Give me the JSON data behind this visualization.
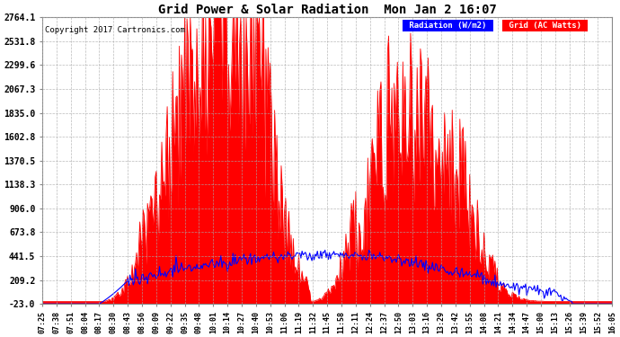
{
  "title": "Grid Power & Solar Radiation  Mon Jan 2 16:07",
  "copyright": "Copyright 2017 Cartronics.com",
  "background_color": "#ffffff",
  "plot_bg_color": "#ffffff",
  "grid_color": "#aaaaaa",
  "yticks": [
    -23.0,
    209.2,
    441.5,
    673.8,
    906.0,
    1138.3,
    1370.5,
    1602.8,
    1835.0,
    2067.3,
    2299.6,
    2531.8,
    2764.1
  ],
  "ymin": -23.0,
  "ymax": 2764.1,
  "radiation_color": "#ff0000",
  "grid_ac_color": "#0000ff",
  "legend_radiation_bg": "#0000ff",
  "legend_grid_bg": "#ff0000",
  "legend_radiation_label": "Radiation (W/m2)",
  "legend_grid_label": "Grid (AC Watts)",
  "xtick_labels": [
    "07:25",
    "07:38",
    "07:51",
    "08:04",
    "08:17",
    "08:30",
    "08:43",
    "08:56",
    "09:09",
    "09:22",
    "09:35",
    "09:48",
    "10:01",
    "10:14",
    "10:27",
    "10:40",
    "10:53",
    "11:06",
    "11:19",
    "11:32",
    "11:45",
    "11:58",
    "12:11",
    "12:24",
    "12:37",
    "12:50",
    "13:03",
    "13:16",
    "13:29",
    "13:42",
    "13:55",
    "14:08",
    "14:21",
    "14:34",
    "14:47",
    "15:00",
    "15:13",
    "15:26",
    "15:39",
    "15:52",
    "16:05"
  ]
}
